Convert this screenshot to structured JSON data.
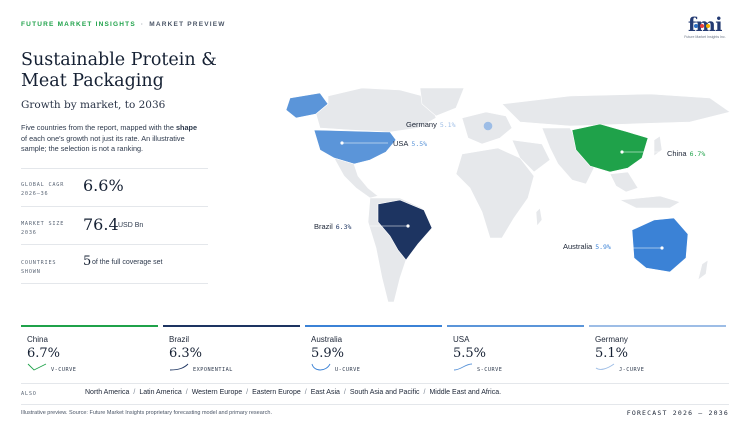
{
  "header": {
    "brand": "FUTURE MARKET INSIGHTS",
    "separator": "·",
    "section": "MARKET PREVIEW"
  },
  "logo": {
    "mark": "fmi",
    "tagline": "Future Market Insights Inc.",
    "dot_colors": [
      "#2c6fc4",
      "#e8403c",
      "#f4b400",
      "#1fa24a"
    ]
  },
  "title": "Sustainable Protein & Meat Packaging",
  "subtitle": "Growth by market, to 2036",
  "description": {
    "part1": "Five countries from the report, mapped with the ",
    "bold": "shape",
    "part2": " of each one's growth not just its rate. An illustrative sample; the selection is not a ranking."
  },
  "stats": [
    {
      "label_line1": "GLOBAL CAGR",
      "label_line2": "2026–36",
      "value": "6.6%",
      "unit": ""
    },
    {
      "label_line1": "MARKET SIZE",
      "label_line2": "2036",
      "value": "76.4",
      "unit": "USD Bn"
    },
    {
      "label_line1": "COUNTRIES",
      "label_line2": "SHOWN",
      "value": "5",
      "unit": "of the full coverage set"
    }
  ],
  "map_labels": {
    "germany": {
      "name": "Germany",
      "rate": "5.1%"
    },
    "usa": {
      "name": "USA",
      "rate": "5.5%"
    },
    "china": {
      "name": "China",
      "rate": "6.7%"
    },
    "brazil": {
      "name": "Brazil",
      "rate": "6.3%"
    },
    "australia": {
      "name": "Australia",
      "rate": "5.9%"
    }
  },
  "cards": [
    {
      "name": "China",
      "rate": "6.7%",
      "curve": "V-CURVE",
      "color": "#1fa24a"
    },
    {
      "name": "Brazil",
      "rate": "6.3%",
      "curve": "EXPONENTIAL",
      "color": "#1d3461"
    },
    {
      "name": "Australia",
      "rate": "5.9%",
      "curve": "U-CURVE",
      "color": "#3b82d6"
    },
    {
      "name": "USA",
      "rate": "5.5%",
      "curve": "S-CURVE",
      "color": "#5b95d9"
    },
    {
      "name": "Germany",
      "rate": "5.1%",
      "curve": "J-CURVE",
      "color": "#9dbde6"
    }
  ],
  "also": {
    "label": "ALSO",
    "regions": [
      "North America",
      "Latin America",
      "Western Europe",
      "Eastern Europe",
      "East Asia",
      "South Asia and Pacific",
      "Middle East and Africa."
    ]
  },
  "footer": {
    "note": "Illustrative preview. Source: Future Market Insights proprietary forecasting model and primary research.",
    "forecast": "FORECAST 2026 – 2036"
  },
  "colors": {
    "land": "#e6e8eb",
    "china": "#1fa24a",
    "brazil": "#1d3461",
    "australia": "#3b82d6",
    "usa": "#5b95d9",
    "germany": "#9dbde6"
  }
}
